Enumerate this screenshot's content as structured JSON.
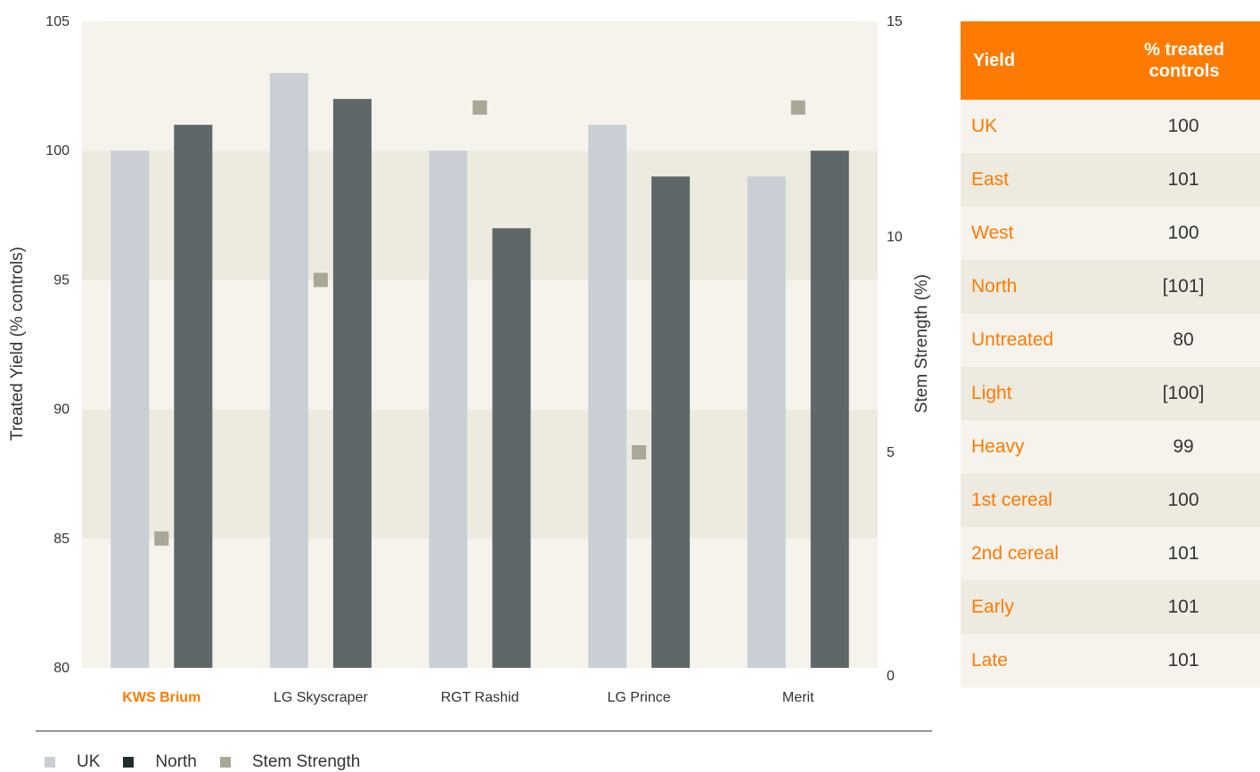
{
  "chart_data": {
    "type": "bar",
    "categories": [
      "KWS Brium",
      "LG Skyscraper",
      "RGT Rashid",
      "LG Prince",
      "Merit"
    ],
    "highlighted_category": "KWS Brium",
    "series": [
      {
        "name": "UK",
        "axis": "left",
        "values": [
          100,
          103,
          100,
          101,
          99
        ],
        "color": "#c9cfd5"
      },
      {
        "name": "North",
        "axis": "left",
        "values": [
          101,
          102,
          97,
          99,
          100
        ],
        "color": "#606769"
      },
      {
        "name": "Stem Strength",
        "axis": "right",
        "type": "scatter",
        "values": [
          3,
          9,
          13,
          5,
          13
        ],
        "color": "#a9a795"
      }
    ],
    "ylabel": "Treated Yield (% controls)",
    "ylim": [
      80,
      105
    ],
    "yticks": [
      80,
      85,
      90,
      95,
      100,
      105
    ],
    "y2label": "Stem Strength (%)",
    "y2lim": [
      0,
      15
    ],
    "y2ticks": [
      0,
      5,
      10,
      15
    ],
    "grid": "alternating horizontal bands",
    "legend_position": "bottom-left"
  },
  "legend": [
    {
      "label": "UK",
      "color": "#c9cfd5"
    },
    {
      "label": "North",
      "color": "#1e2e30"
    },
    {
      "label": "Stem Strength",
      "color": "#a9a795"
    }
  ],
  "table": {
    "header": {
      "col1": "Yield",
      "col2_line1": "% treated",
      "col2_line2": "controls"
    },
    "rows": [
      {
        "label": "UK",
        "value": "100"
      },
      {
        "label": "East",
        "value": "101"
      },
      {
        "label": "West",
        "value": "100"
      },
      {
        "label": "North",
        "value": "[101]"
      },
      {
        "label": "Untreated",
        "value": "80"
      },
      {
        "label": "Light",
        "value": "[100]"
      },
      {
        "label": "Heavy",
        "value": "99"
      },
      {
        "label": "1st cereal",
        "value": "100"
      },
      {
        "label": "2nd cereal",
        "value": "101"
      },
      {
        "label": "Early",
        "value": "101"
      },
      {
        "label": "Late",
        "value": "101"
      }
    ]
  },
  "colors": {
    "accent": "#ff7a00",
    "band_light": "#f5f3ec",
    "band_dark": "#edeae0"
  }
}
